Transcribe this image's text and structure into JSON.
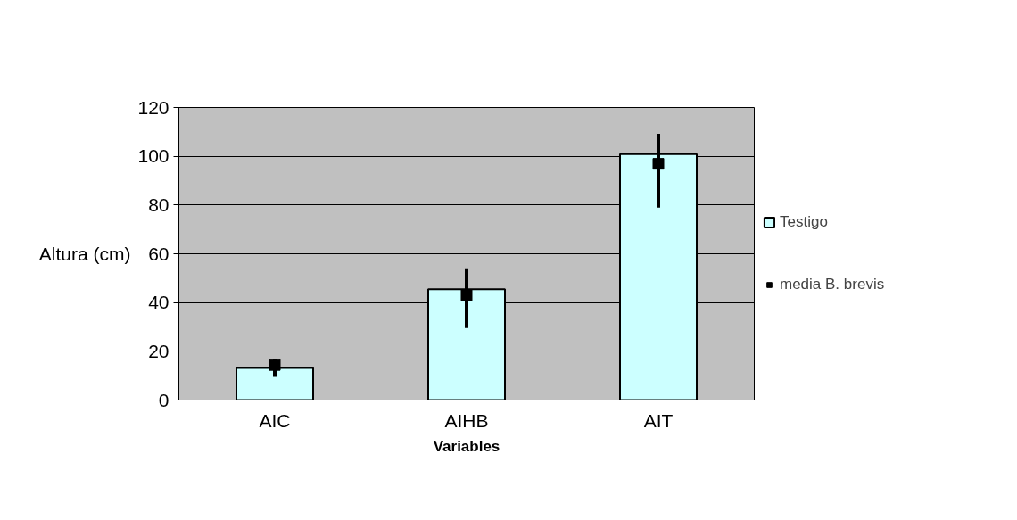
{
  "chart_data": {
    "type": "bar",
    "categories": [
      "AIC",
      "AIHB",
      "AIT"
    ],
    "ylabel": "Altura (cm)",
    "xlabel": "Variables",
    "ylim": [
      0,
      120
    ],
    "yticks": [
      0,
      20,
      40,
      60,
      80,
      100,
      120
    ],
    "grid": "y",
    "legend": "right",
    "series": [
      {
        "name": "Testigo",
        "color": "#ccffff",
        "values": [
          13.2,
          45.5,
          100.9
        ]
      },
      {
        "name": "media B. brevis",
        "type": "scatter",
        "marker": "square",
        "color": "#000000",
        "x": [
          "AIC",
          "AIHB",
          "AIT"
        ],
        "values": [
          14.4,
          43,
          96.9
        ],
        "errors": [
          [
            9.5,
            16.8
          ],
          [
            29.5,
            53.7
          ],
          [
            78.9,
            109.2
          ]
        ]
      }
    ]
  }
}
